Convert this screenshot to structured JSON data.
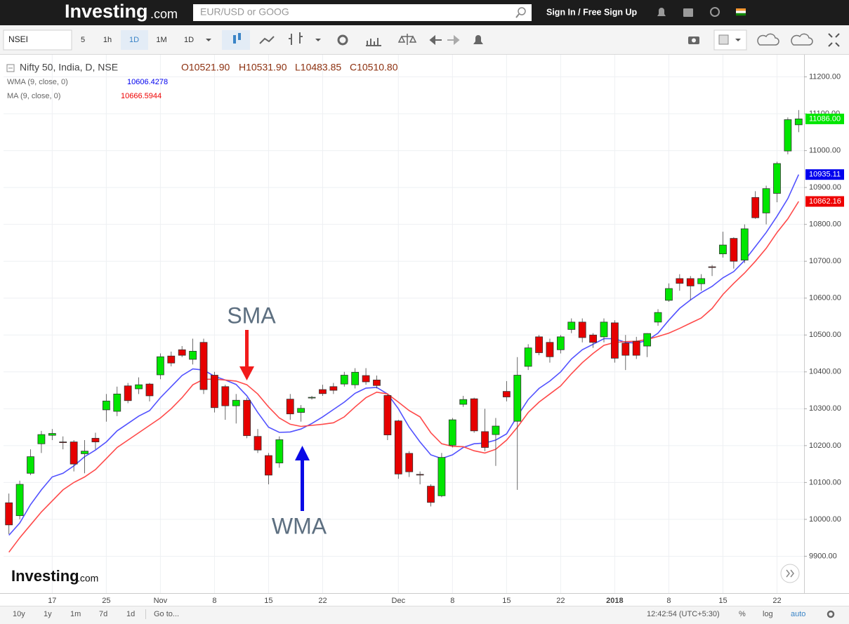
{
  "ui": {
    "logo": "Investing",
    "logo_suffix": ".com",
    "search_placeholder": "EUR/USD or GOOG",
    "sign_in": "Sign In / Free Sign Up",
    "symbol": "NSEI",
    "intervals": [
      "5",
      "1h",
      "1D",
      "1M",
      "1D"
    ],
    "legend_title": "Nifty 50, India, D, NSE",
    "ohlc": [
      "O10521.90",
      "H10531.90",
      "L10483.85",
      "C10510.80"
    ],
    "ranges": [
      "10y",
      "1y",
      "1m",
      "7d",
      "1d",
      "Go to..."
    ],
    "clock": "12:42:54 (UTC+5:30)",
    "scale_options": [
      "%",
      "log",
      "auto"
    ],
    "watermark": "Investing",
    "watermark_suffix": ".com"
  },
  "chart_data": {
    "type": "candlestick",
    "annotations": [
      "SMA",
      "WMA"
    ],
    "categories": [
      null,
      null,
      null,
      null,
      "17",
      null,
      null,
      null,
      null,
      "25",
      null,
      null,
      null,
      null,
      "Nov",
      null,
      null,
      null,
      null,
      "8",
      null,
      null,
      null,
      null,
      "15",
      null,
      null,
      null,
      null,
      "22",
      null,
      null,
      null,
      null,
      null,
      null,
      "Dec",
      null,
      null,
      null,
      null,
      "8",
      null,
      null,
      null,
      null,
      "15",
      null,
      null,
      null,
      null,
      "22",
      null,
      null,
      null,
      null,
      "2018",
      null,
      null,
      null,
      null,
      "8",
      null,
      null,
      null,
      null,
      "15",
      null,
      null,
      null,
      null,
      "22",
      null,
      null
    ],
    "open": [
      10045,
      10010,
      10125,
      10205,
      10228,
      10210,
      10210,
      10178,
      10220,
      10297,
      10293,
      10362,
      10354,
      10367,
      10392,
      10443,
      10460,
      10434,
      10480,
      10391,
      10360,
      10308,
      10323,
      10225,
      10173,
      10153,
      10326,
      10290,
      10330,
      10352,
      10360,
      10367,
      10365,
      10390,
      10378,
      10336,
      10267,
      10179,
      10122,
      10090,
      10064,
      10201,
      10312,
      10327,
      10238,
      10230,
      10347,
      10266,
      10415,
      10495,
      10480,
      10460,
      10515,
      10535,
      10500,
      10495,
      10533,
      10478,
      10483,
      10470,
      10535,
      10594,
      10653,
      10653,
      10639,
      10685,
      10720,
      10762,
      10703,
      10873,
      10831,
      10884,
      10999,
      11070
    ],
    "high": [
      10070,
      10105,
      10190,
      10240,
      10245,
      10225,
      10215,
      10215,
      10235,
      10340,
      10360,
      10370,
      10385,
      10370,
      10450,
      10455,
      10470,
      10490,
      10490,
      10400,
      10365,
      10340,
      10330,
      10245,
      10180,
      10225,
      10340,
      10310,
      10335,
      10365,
      10370,
      10400,
      10410,
      10410,
      10390,
      10340,
      10270,
      10185,
      10130,
      10095,
      10180,
      10275,
      10335,
      10330,
      10300,
      10275,
      10375,
      10440,
      10475,
      10500,
      10490,
      10500,
      10545,
      10545,
      10505,
      10545,
      10540,
      10500,
      10495,
      10505,
      10570,
      10640,
      10665,
      10660,
      10665,
      10690,
      10780,
      10765,
      10800,
      10890,
      10905,
      10970,
      11090,
      11110
    ],
    "low": [
      9960,
      10000,
      10120,
      10180,
      10215,
      10190,
      10130,
      10125,
      10190,
      10265,
      10280,
      10315,
      10340,
      10320,
      10380,
      10415,
      10440,
      10420,
      10340,
      10290,
      10270,
      10260,
      10220,
      10180,
      10095,
      10140,
      10270,
      10265,
      10325,
      10335,
      10340,
      10360,
      10355,
      10365,
      10355,
      10215,
      10110,
      10115,
      10095,
      10035,
      10060,
      10195,
      10305,
      10235,
      10185,
      10145,
      10320,
      10080,
      10405,
      10445,
      10425,
      10450,
      10505,
      10480,
      10465,
      10480,
      10425,
      10405,
      10435,
      10440,
      10525,
      10590,
      10620,
      10595,
      10620,
      10660,
      10710,
      10680,
      10695,
      10815,
      10800,
      10860,
      10990,
      11050
    ],
    "close": [
      9985,
      10095,
      10170,
      10230,
      10233,
      10209,
      10150,
      10185,
      10210,
      10321,
      10340,
      10322,
      10365,
      10335,
      10441,
      10424,
      10445,
      10456,
      10352,
      10303,
      10308,
      10323,
      10227,
      10188,
      10120,
      10216,
      10286,
      10301,
      10331,
      10341,
      10350,
      10391,
      10399,
      10373,
      10363,
      10229,
      10123,
      10129,
      10121,
      10046,
      10168,
      10270,
      10325,
      10240,
      10195,
      10253,
      10332,
      10391,
      10465,
      10452,
      10441,
      10495,
      10535,
      10493,
      10480,
      10535,
      10437,
      10445,
      10445,
      10504,
      10561,
      10626,
      10640,
      10633,
      10653,
      10684,
      10744,
      10700,
      10788,
      10818,
      10897,
      10965,
      11084,
      11086
    ],
    "close_labels": [
      null,
      null,
      null,
      null,
      null,
      null,
      null,
      null,
      null,
      null,
      null,
      null,
      null,
      null,
      null,
      null,
      null,
      null,
      null,
      null,
      null,
      null,
      null,
      null,
      null,
      null,
      null,
      null,
      null,
      null,
      null,
      null,
      null,
      null,
      null,
      null,
      null,
      null,
      null,
      null,
      null,
      null,
      null,
      null,
      null,
      null,
      null,
      null,
      null,
      null,
      null,
      null,
      null,
      null,
      null,
      null,
      null,
      null,
      null,
      null,
      null,
      null,
      null,
      null,
      null,
      null,
      null,
      null,
      null,
      null,
      null,
      null,
      null,
      "11086.00"
    ],
    "up_color": "#00e600",
    "down_color": "#e60000",
    "series": [
      {
        "name": "WMA (9, close, 0)",
        "legend_value": "10606.4278",
        "color": "#5252ff",
        "label_color": "#0000ee",
        "values": [
          9957,
          9990,
          10040,
          10080,
          10115,
          10125,
          10145,
          10170,
          10188,
          10210,
          10240,
          10260,
          10280,
          10295,
          10330,
          10360,
          10390,
          10408,
          10405,
          10388,
          10378,
          10366,
          10335,
          10290,
          10250,
          10236,
          10237,
          10245,
          10260,
          10278,
          10298,
          10318,
          10342,
          10356,
          10358,
          10340,
          10300,
          10250,
          10210,
          10175,
          10165,
          10175,
          10195,
          10205,
          10207,
          10215,
          10232,
          10280,
          10325,
          10355,
          10375,
          10400,
          10435,
          10460,
          10475,
          10490,
          10490,
          10480,
          10478,
          10485,
          10505,
          10540,
          10572,
          10595,
          10615,
          10632,
          10655,
          10672,
          10702,
          10740,
          10778,
          10822,
          10870,
          10935.11
        ],
        "value_labels": [
          null,
          null,
          null,
          null,
          null,
          null,
          null,
          null,
          null,
          null,
          null,
          null,
          null,
          null,
          null,
          null,
          null,
          null,
          null,
          null,
          null,
          null,
          null,
          null,
          null,
          null,
          null,
          null,
          null,
          null,
          null,
          null,
          null,
          null,
          null,
          null,
          null,
          null,
          null,
          null,
          null,
          null,
          null,
          null,
          null,
          null,
          null,
          null,
          null,
          null,
          null,
          null,
          null,
          null,
          null,
          null,
          null,
          null,
          null,
          null,
          null,
          null,
          null,
          null,
          null,
          null,
          null,
          null,
          null,
          null,
          null,
          null,
          null,
          "10935.11"
        ]
      },
      {
        "name": "MA (9, close, 0)",
        "legend_value": "10666.5944",
        "color": "#ff4a4a",
        "label_color": "#ee0000",
        "values": [
          9911,
          9950,
          9985,
          10020,
          10050,
          10080,
          10100,
          10115,
          10135,
          10165,
          10195,
          10215,
          10235,
          10255,
          10275,
          10300,
          10330,
          10365,
          10380,
          10380,
          10378,
          10375,
          10365,
          10340,
          10305,
          10275,
          10258,
          10252,
          10255,
          10258,
          10262,
          10278,
          10305,
          10330,
          10345,
          10340,
          10318,
          10295,
          10278,
          10235,
          10205,
          10198,
          10197,
          10186,
          10180,
          10190,
          10215,
          10250,
          10290,
          10318,
          10340,
          10362,
          10395,
          10425,
          10450,
          10472,
          10480,
          10482,
          10483,
          10488,
          10496,
          10505,
          10518,
          10532,
          10546,
          10572,
          10610,
          10640,
          10668,
          10700,
          10735,
          10778,
          10815,
          10862.16
        ],
        "value_labels": [
          null,
          null,
          null,
          null,
          null,
          null,
          null,
          null,
          null,
          null,
          null,
          null,
          null,
          null,
          null,
          null,
          null,
          null,
          null,
          null,
          null,
          null,
          null,
          null,
          null,
          null,
          null,
          null,
          null,
          null,
          null,
          null,
          null,
          null,
          null,
          null,
          null,
          null,
          null,
          null,
          null,
          null,
          null,
          null,
          null,
          null,
          null,
          null,
          null,
          null,
          null,
          null,
          null,
          null,
          null,
          null,
          null,
          null,
          null,
          null,
          null,
          null,
          null,
          null,
          null,
          null,
          null,
          null,
          null,
          null,
          null,
          null,
          null,
          "10862.16"
        ]
      }
    ],
    "ylim": [
      9800,
      11260
    ],
    "yticks": [
      {
        "value": 9900,
        "label": "9900.00"
      },
      {
        "value": 10000,
        "label": "10000.00"
      },
      {
        "value": 10100,
        "label": "10100.00"
      },
      {
        "value": 10200,
        "label": "10200.00"
      },
      {
        "value": 10300,
        "label": "10300.00"
      },
      {
        "value": 10400,
        "label": "10400.00"
      },
      {
        "value": 10500,
        "label": "10500.00"
      },
      {
        "value": 10600,
        "label": "10600.00"
      },
      {
        "value": 10700,
        "label": "10700.00"
      },
      {
        "value": 10800,
        "label": "10800.00"
      },
      {
        "value": 10900,
        "label": "10900.00"
      },
      {
        "value": 11000,
        "label": "11000.00"
      },
      {
        "value": 11100,
        "label": "11100.00"
      },
      {
        "value": 11200,
        "label": "11200.00"
      }
    ],
    "grid": true
  }
}
